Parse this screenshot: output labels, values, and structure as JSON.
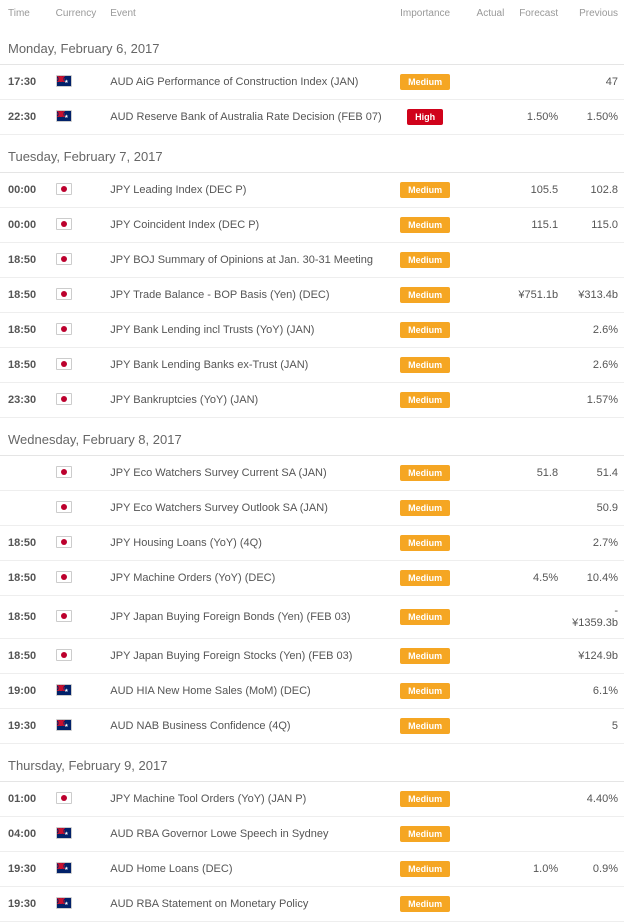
{
  "columns": {
    "time": "Time",
    "currency": "Currency",
    "event": "Event",
    "importance": "Importance",
    "actual": "Actual",
    "forecast": "Forecast",
    "previous": "Previous"
  },
  "importance_labels": {
    "medium": "Medium",
    "high": "High"
  },
  "colors": {
    "medium_bg": "#f5a623",
    "high_bg": "#d0021b",
    "divider": "#eeeeee"
  },
  "days": [
    {
      "label": "Monday, February 6, 2017",
      "rows": [
        {
          "time": "17:30",
          "flag": "au",
          "event": "AUD AiG Performance of Construction Index (JAN)",
          "importance": "medium",
          "actual": "",
          "forecast": "",
          "previous": "47"
        },
        {
          "time": "22:30",
          "flag": "au",
          "event": "AUD Reserve Bank of Australia Rate Decision (FEB 07)",
          "importance": "high",
          "actual": "",
          "forecast": "1.50%",
          "previous": "1.50%"
        }
      ]
    },
    {
      "label": "Tuesday, February 7, 2017",
      "rows": [
        {
          "time": "00:00",
          "flag": "jp",
          "event": "JPY Leading Index (DEC P)",
          "importance": "medium",
          "actual": "",
          "forecast": "105.5",
          "previous": "102.8"
        },
        {
          "time": "00:00",
          "flag": "jp",
          "event": "JPY Coincident Index (DEC P)",
          "importance": "medium",
          "actual": "",
          "forecast": "115.1",
          "previous": "115.0"
        },
        {
          "time": "18:50",
          "flag": "jp",
          "event": "JPY BOJ Summary of Opinions at Jan. 30-31 Meeting",
          "importance": "medium",
          "actual": "",
          "forecast": "",
          "previous": ""
        },
        {
          "time": "18:50",
          "flag": "jp",
          "event": "JPY Trade Balance - BOP Basis (Yen) (DEC)",
          "importance": "medium",
          "actual": "",
          "forecast": "¥751.1b",
          "previous": "¥313.4b"
        },
        {
          "time": "18:50",
          "flag": "jp",
          "event": "JPY Bank Lending incl Trusts (YoY) (JAN)",
          "importance": "medium",
          "actual": "",
          "forecast": "",
          "previous": "2.6%"
        },
        {
          "time": "18:50",
          "flag": "jp",
          "event": "JPY Bank Lending Banks ex-Trust (JAN)",
          "importance": "medium",
          "actual": "",
          "forecast": "",
          "previous": "2.6%"
        },
        {
          "time": "23:30",
          "flag": "jp",
          "event": "JPY Bankruptcies (YoY) (JAN)",
          "importance": "medium",
          "actual": "",
          "forecast": "",
          "previous": "1.57%"
        }
      ]
    },
    {
      "label": "Wednesday, February 8, 2017",
      "rows": [
        {
          "time": "",
          "flag": "jp",
          "event": "JPY Eco Watchers Survey Current SA (JAN)",
          "importance": "medium",
          "actual": "",
          "forecast": "51.8",
          "previous": "51.4"
        },
        {
          "time": "",
          "flag": "jp",
          "event": "JPY Eco Watchers Survey Outlook SA (JAN)",
          "importance": "medium",
          "actual": "",
          "forecast": "",
          "previous": "50.9"
        },
        {
          "time": "18:50",
          "flag": "jp",
          "event": "JPY Housing Loans (YoY) (4Q)",
          "importance": "medium",
          "actual": "",
          "forecast": "",
          "previous": "2.7%"
        },
        {
          "time": "18:50",
          "flag": "jp",
          "event": "JPY Machine Orders (YoY) (DEC)",
          "importance": "medium",
          "actual": "",
          "forecast": "4.5%",
          "previous": "10.4%"
        },
        {
          "time": "18:50",
          "flag": "jp",
          "event": "JPY Japan Buying Foreign Bonds (Yen) (FEB 03)",
          "importance": "medium",
          "actual": "",
          "forecast": "",
          "previous": "-¥1359.3b"
        },
        {
          "time": "18:50",
          "flag": "jp",
          "event": "JPY Japan Buying Foreign Stocks (Yen) (FEB 03)",
          "importance": "medium",
          "actual": "",
          "forecast": "",
          "previous": "¥124.9b"
        },
        {
          "time": "19:00",
          "flag": "au",
          "event": "AUD HIA New Home Sales (MoM) (DEC)",
          "importance": "medium",
          "actual": "",
          "forecast": "",
          "previous": "6.1%"
        },
        {
          "time": "19:30",
          "flag": "au",
          "event": "AUD NAB Business Confidence (4Q)",
          "importance": "medium",
          "actual": "",
          "forecast": "",
          "previous": "5"
        }
      ]
    },
    {
      "label": "Thursday, February 9, 2017",
      "rows": [
        {
          "time": "01:00",
          "flag": "jp",
          "event": "JPY Machine Tool Orders (YoY) (JAN P)",
          "importance": "medium",
          "actual": "",
          "forecast": "",
          "previous": "4.40%"
        },
        {
          "time": "04:00",
          "flag": "au",
          "event": "AUD RBA Governor Lowe Speech in Sydney",
          "importance": "medium",
          "actual": "",
          "forecast": "",
          "previous": ""
        },
        {
          "time": "19:30",
          "flag": "au",
          "event": "AUD Home Loans (DEC)",
          "importance": "medium",
          "actual": "",
          "forecast": "1.0%",
          "previous": "0.9%"
        },
        {
          "time": "19:30",
          "flag": "au",
          "event": "AUD RBA Statement on Monetary Policy",
          "importance": "medium",
          "actual": "",
          "forecast": "",
          "previous": ""
        }
      ]
    }
  ]
}
